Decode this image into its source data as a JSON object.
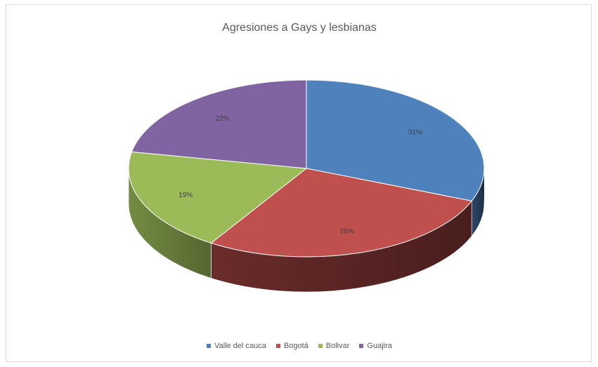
{
  "chart_data": {
    "type": "pie",
    "title": "Agresiones a Gays y lesbianas",
    "legend_position": "bottom",
    "categories": [
      "Valle del cauca",
      "Bogotá",
      "Bolivar",
      "Guajira"
    ],
    "values": [
      31,
      28,
      19,
      22
    ],
    "labels": [
      "31%",
      "28%",
      "19%",
      "22%"
    ],
    "colors": [
      "#4f81bd",
      "#c0504d",
      "#9bbb59",
      "#8064a2"
    ]
  }
}
